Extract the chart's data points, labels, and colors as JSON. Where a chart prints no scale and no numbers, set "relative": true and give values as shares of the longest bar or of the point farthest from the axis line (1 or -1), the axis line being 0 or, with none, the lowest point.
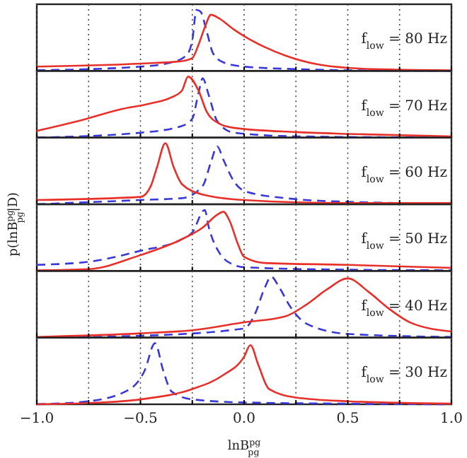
{
  "chart_data": [
    {
      "type": "line",
      "relative": true,
      "xlim": [
        -1,
        1
      ],
      "xticks": [
        -1,
        {
          "value": -0.75,
          "label": null
        },
        -0.5,
        {
          "value": -0.25,
          "label": null
        },
        0,
        {
          "value": 0.25,
          "label": null
        },
        0.5,
        {
          "value": 0.75,
          "label": null
        },
        1
      ],
      "tick_labels": false,
      "grid": "x",
      "annotations": [
        "f$_{low}$ = 80 Hz"
      ],
      "series": [
        {
          "color": "#e8302a",
          "line_style": "solid",
          "x": [
            -1,
            -0.5,
            -0.3,
            -0.25,
            -0.22,
            -0.19,
            -0.16,
            -0.12,
            -0.05,
            0,
            0.1,
            0.2,
            0.35,
            0.5,
            0.75,
            1
          ],
          "values": [
            0.07,
            0.12,
            0.16,
            0.21,
            0.43,
            0.71,
            0.92,
            0.86,
            0.68,
            0.57,
            0.39,
            0.25,
            0.11,
            0.05,
            0.02,
            0.01
          ]
        },
        {
          "color": "#3838d8",
          "line_style": "dashed",
          "x": [
            -1,
            -0.5,
            -0.35,
            -0.28,
            -0.25,
            -0.23,
            -0.21,
            -0.18,
            -0.15,
            -0.1,
            0,
            0.25,
            0.5,
            1
          ],
          "values": [
            0.01,
            0.07,
            0.14,
            0.25,
            0.5,
            1,
            0.97,
            0.64,
            0.29,
            0.14,
            0.07,
            0.03,
            0.01,
            0
          ]
        }
      ]
    },
    {
      "type": "line",
      "relative": true,
      "xlim": [
        -1,
        1
      ],
      "xticks": [
        -1,
        {
          "value": -0.75,
          "label": null
        },
        -0.5,
        {
          "value": -0.25,
          "label": null
        },
        0,
        {
          "value": 0.25,
          "label": null
        },
        0.5,
        {
          "value": 0.75,
          "label": null
        },
        1
      ],
      "tick_labels": false,
      "grid": "x",
      "annotations": [
        "f$_{low}$ = 70 Hz"
      ],
      "series": [
        {
          "color": "#e8302a",
          "line_style": "solid",
          "x": [
            -1,
            -0.8,
            -0.6,
            -0.45,
            -0.35,
            -0.3,
            -0.27,
            -0.22,
            -0.18,
            -0.12,
            -0.05,
            0.25,
            0.5,
            1
          ],
          "values": [
            0.11,
            0.27,
            0.46,
            0.56,
            0.66,
            0.77,
            1,
            0.77,
            0.42,
            0.23,
            0.16,
            0.09,
            0.06,
            0.02
          ]
        },
        {
          "color": "#3838d8",
          "line_style": "dashed",
          "x": [
            -1,
            -0.5,
            -0.3,
            -0.25,
            -0.22,
            -0.2,
            -0.17,
            -0.13,
            -0.05,
            0.25,
            1
          ],
          "values": [
            0,
            0.08,
            0.19,
            0.31,
            0.73,
            0.97,
            0.69,
            0.27,
            0.08,
            0.02,
            0
          ]
        }
      ]
    },
    {
      "type": "line",
      "relative": true,
      "xlim": [
        -1,
        1
      ],
      "xticks": [
        -1,
        {
          "value": -0.75,
          "label": null
        },
        -0.5,
        {
          "value": -0.25,
          "label": null
        },
        0,
        {
          "value": 0.25,
          "label": null
        },
        0.5,
        {
          "value": 0.75,
          "label": null
        },
        1
      ],
      "tick_labels": false,
      "grid": "x",
      "annotations": [
        "f$_{low}$ = 60 Hz"
      ],
      "series": [
        {
          "color": "#e8302a",
          "line_style": "solid",
          "x": [
            -1,
            -0.5,
            -0.45,
            -0.42,
            -0.38,
            -0.34,
            -0.3,
            -0.2,
            0,
            0.5,
            1
          ],
          "values": [
            0.07,
            0.12,
            0.3,
            0.61,
            1,
            0.61,
            0.33,
            0.16,
            0.07,
            0.02,
            0.02
          ]
        },
        {
          "color": "#3838d8",
          "line_style": "dashed",
          "x": [
            -1,
            -0.5,
            -0.3,
            -0.2,
            -0.16,
            -0.13,
            -0.1,
            -0.05,
            0,
            0.2,
            0.5,
            1
          ],
          "values": [
            0,
            0.07,
            0.1,
            0.3,
            0.69,
            0.95,
            0.73,
            0.38,
            0.22,
            0.1,
            0.04,
            0.01
          ]
        }
      ]
    },
    {
      "type": "line",
      "relative": true,
      "xlim": [
        -1,
        1
      ],
      "xticks": [
        -1,
        {
          "value": -0.75,
          "label": null
        },
        -0.5,
        {
          "value": -0.25,
          "label": null
        },
        0,
        {
          "value": 0.25,
          "label": null
        },
        0.5,
        {
          "value": 0.75,
          "label": null
        },
        1
      ],
      "tick_labels": false,
      "grid": "x",
      "ylabel": "p(lnB$^{pg}$$_{pg}$|D)",
      "annotations": [
        "f$_{low}$ = 50 Hz"
      ],
      "series": [
        {
          "color": "#e8302a",
          "line_style": "solid",
          "x": [
            -1,
            -0.75,
            -0.5,
            -0.3,
            -0.2,
            -0.13,
            -0.1,
            -0.07,
            -0.03,
            0,
            0.1,
            0.5,
            1
          ],
          "values": [
            0.01,
            0.03,
            0.26,
            0.52,
            0.71,
            0.92,
            0.97,
            0.82,
            0.44,
            0.23,
            0.13,
            0.1,
            0.05
          ]
        },
        {
          "color": "#3838d8",
          "line_style": "dashed",
          "x": [
            -1,
            -0.75,
            -0.5,
            -0.3,
            -0.25,
            -0.19,
            -0.17,
            -0.12,
            -0.05,
            0,
            0.5,
            1
          ],
          "values": [
            0.1,
            0.15,
            0.33,
            0.52,
            0.63,
            1,
            0.71,
            0.3,
            0.1,
            0.06,
            0.02,
            0.01
          ]
        }
      ]
    },
    {
      "type": "line",
      "relative": true,
      "xlim": [
        -1,
        1
      ],
      "xticks": [
        -1,
        {
          "value": -0.75,
          "label": null
        },
        -0.5,
        {
          "value": -0.25,
          "label": null
        },
        0,
        {
          "value": 0.25,
          "label": null
        },
        0.5,
        {
          "value": 0.75,
          "label": null
        },
        1
      ],
      "tick_labels": false,
      "grid": "x",
      "annotations": [
        "f$_{low}$ = 40 Hz"
      ],
      "series": [
        {
          "color": "#e8302a",
          "line_style": "solid",
          "x": [
            -1,
            -0.5,
            -0.25,
            0,
            0.2,
            0.3,
            0.4,
            0.5,
            0.6,
            0.7,
            0.8,
            1
          ],
          "values": [
            0.01,
            0.07,
            0.12,
            0.25,
            0.35,
            0.54,
            0.79,
            0.97,
            0.75,
            0.47,
            0.25,
            0.1
          ]
        },
        {
          "color": "#3838d8",
          "line_style": "dashed",
          "x": [
            -1,
            -0.5,
            0,
            0.05,
            0.1,
            0.13,
            0.17,
            0.22,
            0.3,
            0.5,
            1
          ],
          "values": [
            0,
            0.03,
            0.15,
            0.37,
            0.82,
            1,
            0.82,
            0.52,
            0.23,
            0.06,
            0.01
          ]
        }
      ]
    },
    {
      "type": "line",
      "relative": true,
      "xlim": [
        -1,
        1
      ],
      "xticks": [
        {
          "value": -1,
          "label": "−1.0"
        },
        {
          "value": -0.75,
          "label": null
        },
        {
          "value": -0.5,
          "label": "−0.5"
        },
        {
          "value": -0.25,
          "label": null
        },
        {
          "value": 0,
          "label": "0.0"
        },
        {
          "value": 0.25,
          "label": null
        },
        0.5,
        {
          "value": 0.75,
          "label": null
        },
        {
          "value": 1,
          "label": "1.0"
        }
      ],
      "tick_labels": "x",
      "grid": "x",
      "xlabel": "lnB$^{pg}$$_{pg}$",
      "annotations": [
        "f$_{low}$ = 30 Hz"
      ],
      "series": [
        {
          "color": "#e8302a",
          "line_style": "solid",
          "x": [
            -1,
            -0.75,
            -0.5,
            -0.25,
            -0.1,
            0,
            0.03,
            0.07,
            0.12,
            0.25,
            0.5,
            1
          ],
          "values": [
            0,
            0.02,
            0.08,
            0.25,
            0.48,
            0.78,
            0.97,
            0.63,
            0.25,
            0.11,
            0.05,
            0.01
          ]
        },
        {
          "color": "#3838d8",
          "line_style": "dashed",
          "x": [
            -1,
            -0.75,
            -0.55,
            -0.48,
            -0.43,
            -0.39,
            -0.35,
            -0.25,
            0,
            0.5,
            1
          ],
          "values": [
            0,
            0.05,
            0.25,
            0.55,
            1,
            0.55,
            0.21,
            0.08,
            0.03,
            0.01,
            0
          ]
        }
      ]
    }
  ]
}
